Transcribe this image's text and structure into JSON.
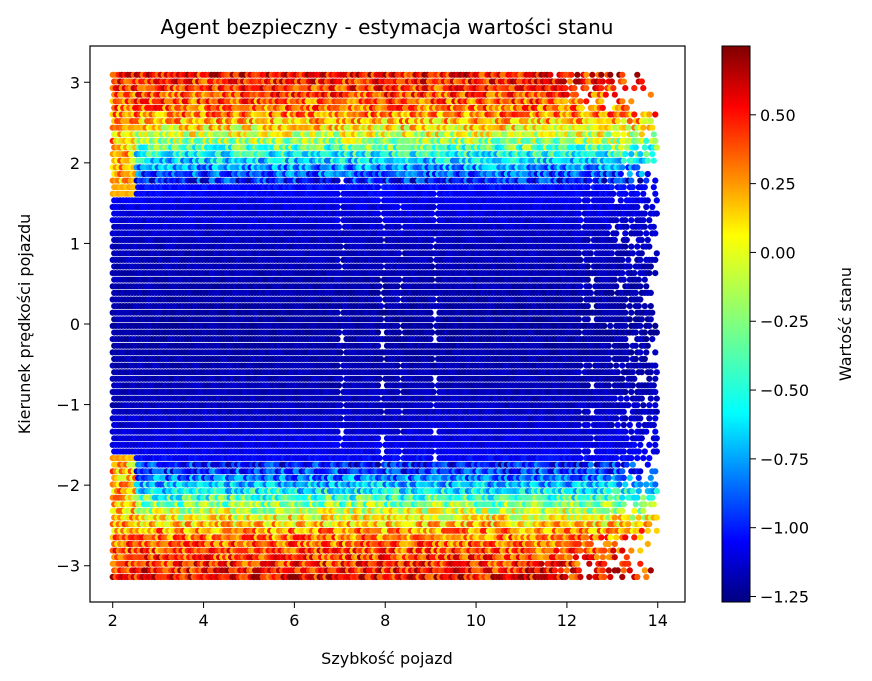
{
  "chart_data": {
    "type": "heatmap",
    "subtype": "hexbin",
    "title": "Agent bezpieczny - estymacja wartości stanu",
    "xlabel": "Szybkość pojazd",
    "ylabel": "Kierunek prędkości pojazdu",
    "xlim": [
      1.5,
      14.6
    ],
    "ylim": [
      -3.45,
      3.45
    ],
    "xticks": [
      2,
      4,
      6,
      8,
      10,
      12,
      14
    ],
    "yticks": [
      -3,
      -2,
      -1,
      0,
      1,
      2,
      3
    ],
    "data_extent": {
      "x": [
        2.0,
        14.0
      ],
      "y": [
        -3.14,
        3.14
      ]
    },
    "colormap": "jet",
    "colorbar": {
      "label": "Wartość stanu",
      "range": [
        -1.27,
        0.75
      ],
      "ticks": [
        0.5,
        0.25,
        0.0,
        -0.25,
        -0.5,
        -0.75,
        -1.0,
        -1.25
      ],
      "tick_labels": [
        "0.50",
        "0.25",
        "0.00",
        "−0.25",
        "−0.50",
        "−0.75",
        "−1.00",
        "−1.25"
      ]
    },
    "value_profile": [
      {
        "abs_heading": 0.0,
        "value": -1.2
      },
      {
        "abs_heading": 1.0,
        "value": -1.15
      },
      {
        "abs_heading": 1.6,
        "value": -1.05
      },
      {
        "abs_heading": 1.8,
        "value": -0.95
      },
      {
        "abs_heading": 2.0,
        "value": -0.65
      },
      {
        "abs_heading": 2.3,
        "value": -0.15
      },
      {
        "abs_heading": 2.6,
        "value": 0.25
      },
      {
        "abs_heading": 3.14,
        "value": 0.5
      }
    ]
  }
}
